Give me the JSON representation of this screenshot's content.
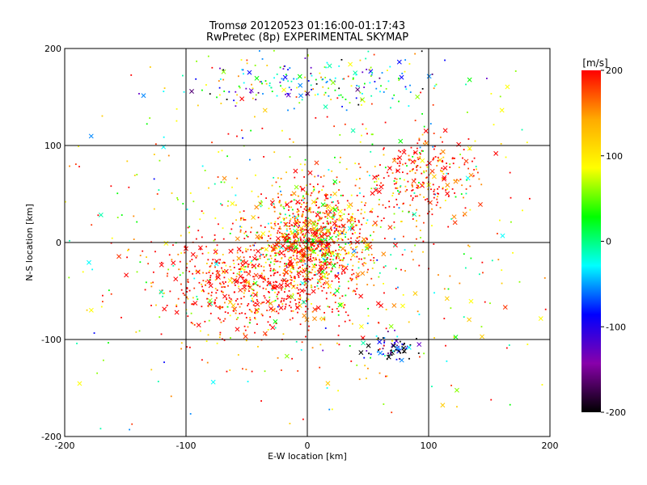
{
  "chart_data": {
    "type": "scatter",
    "title": "Tromsø 20120523 01:16:00-01:17:43",
    "subtitle": "RwPretec (8p) EXPERIMENTAL SKYMAP",
    "xlabel": "E-W location [km]",
    "ylabel": "N-S location [km]",
    "xlim": [
      -200,
      200
    ],
    "ylim": [
      -200,
      200
    ],
    "x_ticks": [
      -200,
      -100,
      0,
      100,
      200
    ],
    "y_ticks": [
      -200,
      -100,
      0,
      100,
      200
    ],
    "grid": true,
    "colorbar": {
      "unit_label": "[m/s]",
      "range": [
        -200,
        200
      ],
      "ticks": [
        200,
        100,
        0,
        -100,
        -200
      ],
      "colors": [
        "#ff0000",
        "#ffaa00",
        "#ffff00",
        "#00ff00",
        "#00ffff",
        "#0000ff",
        "#8800aa",
        "#000000"
      ]
    },
    "markers": "velocity-colored points and crosses; dense cluster near the origin, northern arc near y=150-190 km, northeast patch near (100, 60) km, southwest spread near (-40, -40) km, southeast black cluster near (70, -110) km"
  }
}
